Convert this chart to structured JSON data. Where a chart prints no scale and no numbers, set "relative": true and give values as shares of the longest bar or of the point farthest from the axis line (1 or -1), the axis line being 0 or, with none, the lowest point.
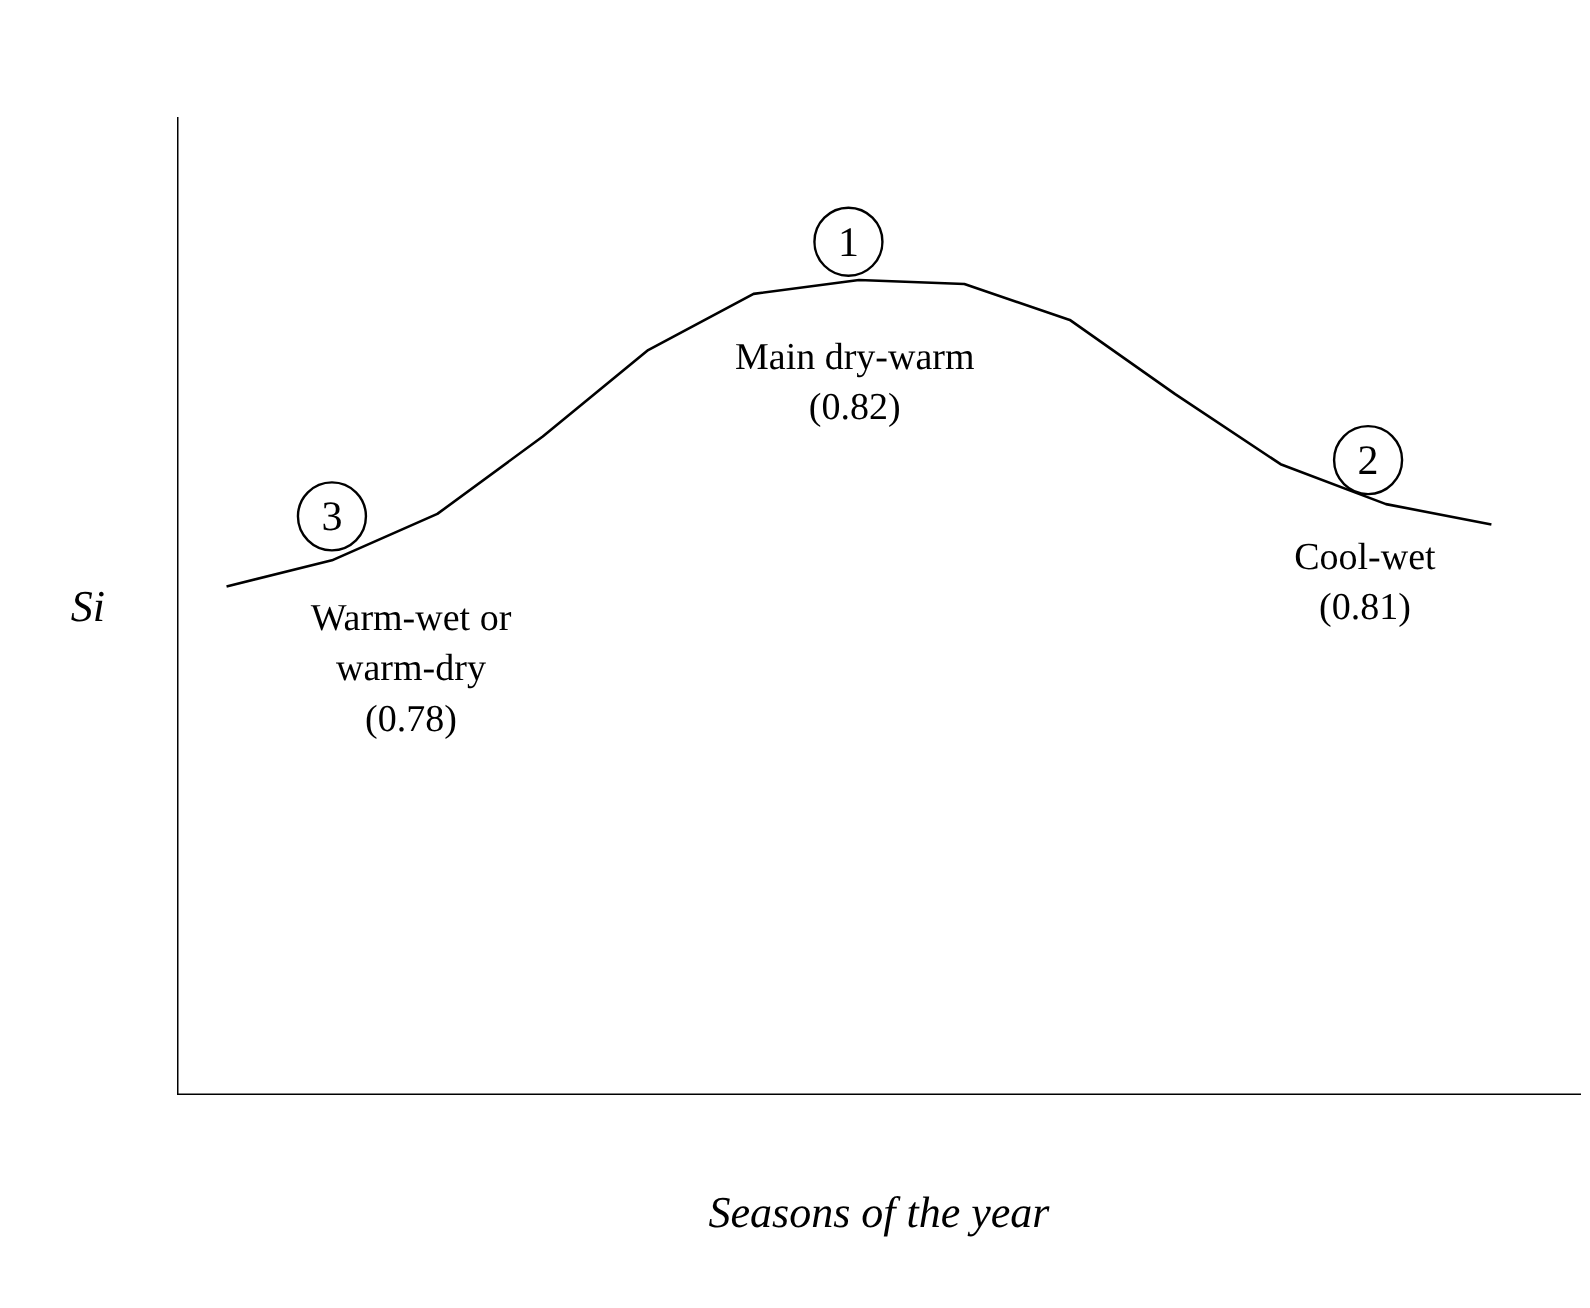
{
  "chart_data": {
    "type": "line",
    "relative": true,
    "xlabel": "Seasons of the year",
    "ylabel": "Si",
    "categories": [
      null,
      null,
      null,
      null,
      null,
      null,
      null,
      null,
      null,
      null,
      null,
      null,
      null
    ],
    "series": [
      {
        "color": "#000000",
        "values": [
          0.624,
          0.656,
          0.713,
          0.808,
          0.914,
          0.983,
          1,
          0.995,
          0.951,
          0.86,
          0.774,
          0.725,
          0.7
        ]
      }
    ],
    "annotations": [
      "1",
      "Main dry-warm\n(0.82)",
      "2",
      "Cool-wet\n(0.81)",
      "3",
      "Warm-wet or\nwarm-dry\n(0.78)"
    ],
    "marker": "none",
    "line_style": "solid",
    "grid": false
  }
}
